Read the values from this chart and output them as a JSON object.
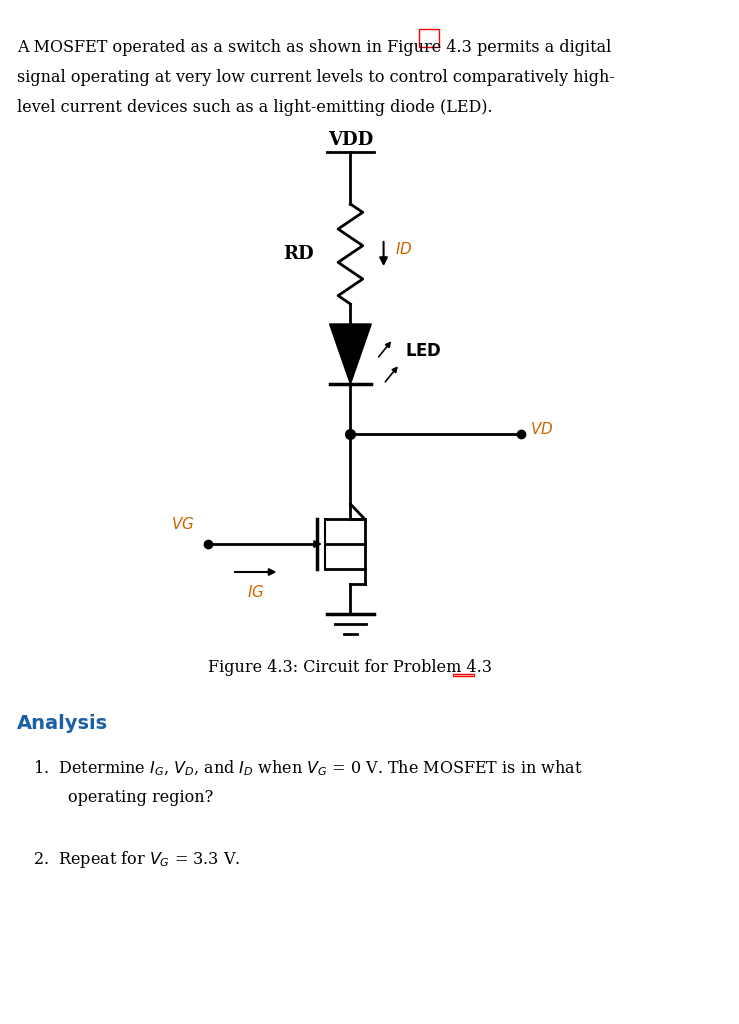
{
  "bg_color": "#ffffff",
  "text_color": "#000000",
  "orange_color": "#cc6600",
  "blue_color": "#1a5fa8",
  "intro_text": "A MOSFET operated as a switch as shown in Figure 4.3 permits a digital\nsignal operating at very low current levels to control comparatively high-\nlevel current devices such as a light-emitting diode (LED).",
  "figure_caption": "Figure 4.3: Circuit for Problem 4.3",
  "analysis_title": "Analysis",
  "item1": "1.  Determine $I_G$, $V_D$, and $I_D$ when $V_G$ = 0 V. The MOSFET is in what\n    operating region?",
  "item2": "2.  Repeat for $V_G$ = 3.3 V."
}
